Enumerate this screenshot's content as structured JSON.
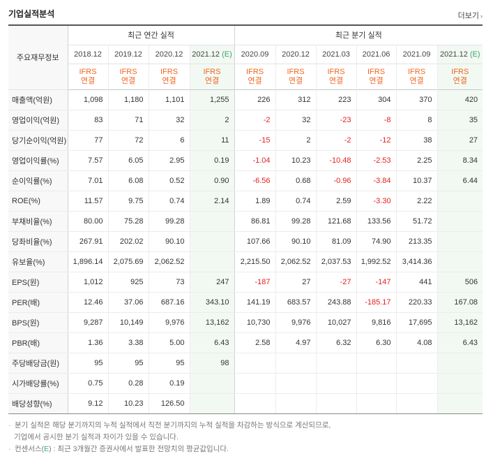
{
  "header": {
    "title": "기업실적분석",
    "more": "더보기",
    "more_arrow": "›"
  },
  "groups": {
    "annual": "최근 연간 실적",
    "quarterly": "최근 분기 실적"
  },
  "row_header": "주요재무정보",
  "periods": [
    {
      "label": "2018.12",
      "est": ""
    },
    {
      "label": "2019.12",
      "est": ""
    },
    {
      "label": "2020.12",
      "est": ""
    },
    {
      "label": "2021.12",
      "est": "(E)"
    },
    {
      "label": "2020.09",
      "est": ""
    },
    {
      "label": "2020.12",
      "est": ""
    },
    {
      "label": "2021.03",
      "est": ""
    },
    {
      "label": "2021.06",
      "est": ""
    },
    {
      "label": "2021.09",
      "est": ""
    },
    {
      "label": "2021.12",
      "est": "(E)"
    }
  ],
  "ifrs": {
    "line1": "IFRS",
    "line2": "연결"
  },
  "rows": [
    {
      "label": "매출액(억원)",
      "values": [
        "1,098",
        "1,180",
        "1,101",
        "1,255",
        "226",
        "312",
        "223",
        "304",
        "370",
        "420"
      ]
    },
    {
      "label": "영업이익(억원)",
      "values": [
        "83",
        "71",
        "32",
        "2",
        "-2",
        "32",
        "-23",
        "-8",
        "8",
        "35"
      ]
    },
    {
      "label": "당기순이익(억원)",
      "values": [
        "77",
        "72",
        "6",
        "11",
        "-15",
        "2",
        "-2",
        "-12",
        "38",
        "27"
      ]
    },
    {
      "label": "영업이익률(%)",
      "values": [
        "7.57",
        "6.05",
        "2.95",
        "0.19",
        "-1.04",
        "10.23",
        "-10.48",
        "-2.53",
        "2.25",
        "8.34"
      ]
    },
    {
      "label": "순이익률(%)",
      "values": [
        "7.01",
        "6.08",
        "0.52",
        "0.90",
        "-6.56",
        "0.68",
        "-0.96",
        "-3.84",
        "10.37",
        "6.44"
      ]
    },
    {
      "label": "ROE(%)",
      "values": [
        "11.57",
        "9.75",
        "0.74",
        "2.14",
        "1.89",
        "0.74",
        "2.59",
        "-3.30",
        "2.22",
        ""
      ]
    },
    {
      "label": "부채비율(%)",
      "values": [
        "80.00",
        "75.28",
        "99.28",
        "",
        "86.81",
        "99.28",
        "121.68",
        "133.56",
        "51.72",
        ""
      ]
    },
    {
      "label": "당좌비율(%)",
      "values": [
        "267.91",
        "202.02",
        "90.10",
        "",
        "107.66",
        "90.10",
        "81.09",
        "74.90",
        "213.35",
        ""
      ]
    },
    {
      "label": "유보율(%)",
      "values": [
        "1,896.14",
        "2,075.69",
        "2,062.52",
        "",
        "2,215.50",
        "2,062.52",
        "2,037.53",
        "1,992.52",
        "3,414.36",
        ""
      ]
    },
    {
      "label": "EPS(원)",
      "values": [
        "1,012",
        "925",
        "73",
        "247",
        "-187",
        "27",
        "-27",
        "-147",
        "441",
        "506"
      ]
    },
    {
      "label": "PER(배)",
      "values": [
        "12.46",
        "37.06",
        "687.16",
        "343.10",
        "141.19",
        "683.57",
        "243.88",
        "-185.17",
        "220.33",
        "167.08"
      ]
    },
    {
      "label": "BPS(원)",
      "values": [
        "9,287",
        "10,149",
        "9,976",
        "13,162",
        "10,730",
        "9,976",
        "10,027",
        "9,816",
        "17,695",
        "13,162"
      ]
    },
    {
      "label": "PBR(배)",
      "values": [
        "1.36",
        "3.38",
        "5.00",
        "6.43",
        "2.58",
        "4.97",
        "6.32",
        "6.30",
        "4.08",
        "6.43"
      ]
    },
    {
      "label": "주당배당금(원)",
      "values": [
        "95",
        "95",
        "95",
        "98",
        "",
        "",
        "",
        "",
        "",
        ""
      ]
    },
    {
      "label": "시가배당률(%)",
      "values": [
        "0.75",
        "0.28",
        "0.19",
        "",
        "",
        "",
        "",
        "",
        "",
        ""
      ]
    },
    {
      "label": "배당성향(%)",
      "values": [
        "9.12",
        "10.23",
        "126.50",
        "",
        "",
        "",
        "",
        "",
        "",
        ""
      ]
    }
  ],
  "section_starts": [
    0,
    3,
    6,
    9,
    13
  ],
  "notes": {
    "bullet": "·",
    "line1": "분기 실적은 해당 분기까지의 누적 실적에서 직전 분기까지의 누적 실적을 차감하는 방식으로 계산되므로,",
    "line2": "기업에서 공시한 분기 실적과 차이가 있을 수 있습니다.",
    "line3_pre": "컨센서스(",
    "line3_e": "E",
    "line3_post": ") : 최근 3개월간 증권사에서 발표한 전망치의 평균값입니다."
  },
  "colors": {
    "ifrs": "#f0651f",
    "negative": "#e62020",
    "estimate": "#3aa76d",
    "estimate_bg": "#f2f9f2",
    "label_bg": "#f8f8f8"
  }
}
